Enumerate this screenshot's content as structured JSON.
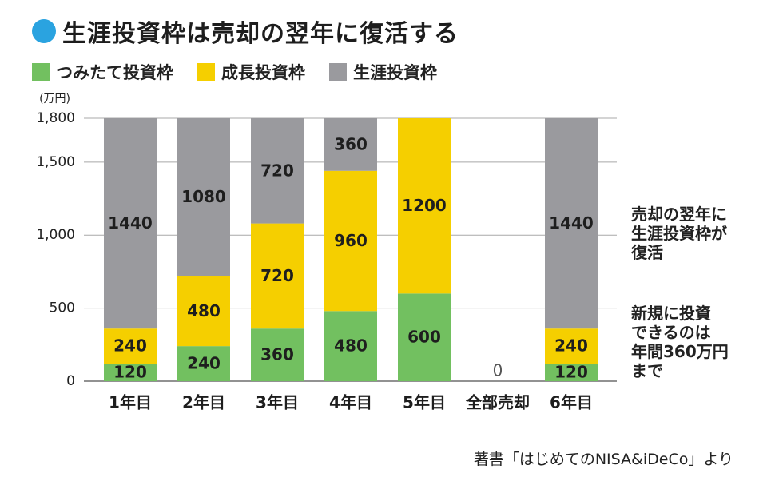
{
  "title": "生涯投資枠は売却の翌年に復活する",
  "legend": [
    {
      "label": "つみたて投資枠",
      "color": "#72c060"
    },
    {
      "label": "成長投資枠",
      "color": "#f5cf00"
    },
    {
      "label": "生涯投資枠",
      "color": "#9a9a9e"
    }
  ],
  "chart_data": {
    "type": "bar",
    "stacked": true,
    "unit": "(万円)",
    "categories": [
      "1年目",
      "2年目",
      "3年目",
      "4年目",
      "5年目",
      "全部売却",
      "6年目"
    ],
    "series": [
      {
        "name": "つみたて投資枠",
        "color": "#72c060",
        "values": [
          120,
          240,
          360,
          480,
          600,
          0,
          120
        ]
      },
      {
        "name": "成長投資枠",
        "color": "#f5cf00",
        "values": [
          240,
          480,
          720,
          960,
          1200,
          0,
          240
        ]
      },
      {
        "name": "生涯投資枠",
        "color": "#9a9a9e",
        "values": [
          1440,
          1080,
          720,
          360,
          0,
          0,
          1440
        ]
      }
    ],
    "zero_label": "0",
    "y_ticks": [
      0,
      500,
      1000,
      1500,
      1800
    ],
    "y_tick_labels": [
      "0",
      "500",
      "1,000",
      "1,500",
      "1,800"
    ],
    "ylim": [
      0,
      1800
    ],
    "grid": true
  },
  "notes": {
    "revival": "売却の翌年に\n生涯投資枠が\n復活",
    "annual_limit": "新規に投資\nできるのは\n年間360万円\nまで"
  },
  "source": "著書「はじめてのNISA&iDeCo」より"
}
